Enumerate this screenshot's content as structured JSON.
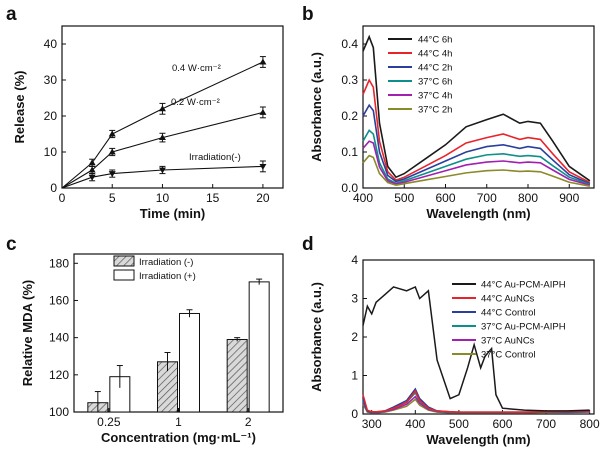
{
  "chart_data": [
    {
      "panel": "a",
      "type": "line",
      "xlabel": "Time (min)",
      "ylabel": "Release (%)",
      "xlim": [
        0,
        22
      ],
      "ylim": [
        0,
        45
      ],
      "xticks": [
        0,
        5,
        10,
        15,
        20
      ],
      "yticks": [
        0,
        10,
        20,
        30,
        40
      ],
      "x": [
        0,
        3,
        5,
        10,
        20
      ],
      "series": [
        {
          "name": "0.4 W·cm⁻²",
          "values": [
            0,
            7,
            15,
            22,
            35
          ],
          "errors": [
            0,
            1,
            1,
            1.5,
            1.5
          ],
          "marker": "triangle-up"
        },
        {
          "name": "0.2 W·cm⁻²",
          "values": [
            0,
            5,
            10,
            14,
            21
          ],
          "errors": [
            0,
            1,
            1,
            1.2,
            1.5
          ],
          "marker": "triangle-up"
        },
        {
          "name": "Irradiation(-)",
          "values": [
            0,
            3,
            4,
            5,
            6
          ],
          "errors": [
            0,
            1,
            1,
            1,
            1.5
          ],
          "marker": "triangle-down"
        }
      ]
    },
    {
      "panel": "b",
      "type": "line",
      "xlabel": "Wavelength (nm)",
      "ylabel": "Absorbance (a.u.)",
      "xlim": [
        400,
        960
      ],
      "ylim": [
        0,
        0.45
      ],
      "xticks": [
        400,
        500,
        600,
        700,
        800,
        900
      ],
      "yticks": [
        0.0,
        0.1,
        0.2,
        0.3,
        0.4
      ],
      "legend_position": "top-right",
      "x": [
        400,
        415,
        425,
        440,
        460,
        480,
        500,
        550,
        600,
        650,
        700,
        740,
        780,
        800,
        830,
        860,
        900,
        950
      ],
      "series": [
        {
          "name": "44°C 6h",
          "color": "#1a1a1a",
          "values": [
            0.38,
            0.42,
            0.39,
            0.18,
            0.06,
            0.03,
            0.04,
            0.08,
            0.12,
            0.17,
            0.19,
            0.205,
            0.18,
            0.185,
            0.18,
            0.13,
            0.06,
            0.02
          ]
        },
        {
          "name": "44°C 4h",
          "color": "#e8242b",
          "values": [
            0.26,
            0.3,
            0.28,
            0.13,
            0.045,
            0.022,
            0.03,
            0.06,
            0.09,
            0.125,
            0.14,
            0.15,
            0.135,
            0.14,
            0.135,
            0.095,
            0.045,
            0.015
          ]
        },
        {
          "name": "44°C 2h",
          "color": "#2a3f9d",
          "values": [
            0.2,
            0.23,
            0.215,
            0.1,
            0.035,
            0.018,
            0.025,
            0.05,
            0.075,
            0.1,
            0.115,
            0.12,
            0.11,
            0.115,
            0.11,
            0.078,
            0.037,
            0.012
          ]
        },
        {
          "name": "37°C 6h",
          "color": "#0f8f8a",
          "values": [
            0.13,
            0.16,
            0.15,
            0.07,
            0.025,
            0.013,
            0.02,
            0.04,
            0.06,
            0.08,
            0.092,
            0.095,
            0.088,
            0.09,
            0.087,
            0.062,
            0.03,
            0.01
          ]
        },
        {
          "name": "37°C 4h",
          "color": "#a020b0",
          "values": [
            0.11,
            0.13,
            0.125,
            0.058,
            0.02,
            0.011,
            0.016,
            0.032,
            0.048,
            0.064,
            0.072,
            0.075,
            0.07,
            0.072,
            0.07,
            0.05,
            0.024,
            0.008
          ]
        },
        {
          "name": "37°C 2h",
          "color": "#8a8a2a",
          "values": [
            0.07,
            0.09,
            0.085,
            0.04,
            0.015,
            0.008,
            0.012,
            0.022,
            0.032,
            0.042,
            0.048,
            0.05,
            0.046,
            0.047,
            0.045,
            0.033,
            0.016,
            0.005
          ]
        }
      ]
    },
    {
      "panel": "c",
      "type": "bar",
      "xlabel": "Concentration (mg·mL⁻¹)",
      "ylabel": "Relative MDA (%)",
      "ylim": [
        100,
        185
      ],
      "yticks": [
        100,
        120,
        140,
        160,
        180
      ],
      "categories": [
        "0.25",
        "1",
        "2"
      ],
      "legend_position": "top-left",
      "series": [
        {
          "name": "Irradiation (-)",
          "values": [
            105,
            127,
            139
          ],
          "errors": [
            6,
            5,
            1
          ],
          "pattern": "hatched"
        },
        {
          "name": "Irradiation (+)",
          "values": [
            119,
            153,
            170
          ],
          "errors": [
            6,
            2,
            1.5
          ],
          "pattern": "open"
        }
      ]
    },
    {
      "panel": "d",
      "type": "line",
      "xlabel": "Wavelength (nm)",
      "ylabel": "Absorbance (a.u.)",
      "xlim": [
        280,
        810
      ],
      "ylim": [
        0,
        4
      ],
      "xticks": [
        300,
        400,
        500,
        600,
        700,
        800
      ],
      "yticks": [
        0,
        1,
        2,
        3,
        4
      ],
      "legend_position": "top-right",
      "x": [
        280,
        290,
        300,
        310,
        330,
        350,
        380,
        400,
        410,
        430,
        450,
        480,
        500,
        520,
        535,
        550,
        560,
        575,
        585,
        600,
        650,
        700,
        750,
        800
      ],
      "series": [
        {
          "name": "44°C Au-PCM-AIPH",
          "color": "#1a1a1a",
          "values": [
            2.3,
            2.8,
            2.6,
            2.9,
            3.1,
            3.3,
            3.2,
            3.3,
            3.0,
            3.2,
            1.4,
            0.4,
            0.5,
            1.2,
            1.8,
            1.2,
            1.5,
            1.7,
            0.5,
            0.15,
            0.1,
            0.08,
            0.08,
            0.1
          ]
        },
        {
          "name": "44°C AuNCs",
          "color": "#e8242b",
          "values": [
            0.5,
            0.1,
            0.06,
            0.06,
            0.08,
            0.15,
            0.3,
            0.6,
            0.35,
            0.15,
            0.08,
            0.06,
            0.05,
            0.05,
            0.05,
            0.05,
            0.05,
            0.05,
            0.05,
            0.05,
            0.05,
            0.06,
            0.07,
            0.08
          ]
        },
        {
          "name": "44°C Control",
          "color": "#2a3f9d",
          "values": [
            0.4,
            0.08,
            0.05,
            0.05,
            0.08,
            0.18,
            0.35,
            0.65,
            0.4,
            0.18,
            0.08,
            0.06,
            0.05,
            0.05,
            0.05,
            0.05,
            0.05,
            0.05,
            0.05,
            0.05,
            0.05,
            0.06,
            0.06,
            0.07
          ]
        },
        {
          "name": "37°C Au-PCM-AIPH",
          "color": "#0f8f8a",
          "values": [
            0.35,
            0.07,
            0.05,
            0.05,
            0.07,
            0.15,
            0.3,
            0.55,
            0.33,
            0.14,
            0.07,
            0.05,
            0.04,
            0.04,
            0.04,
            0.04,
            0.04,
            0.04,
            0.04,
            0.04,
            0.05,
            0.05,
            0.06,
            0.07
          ]
        },
        {
          "name": "37°C AuNCs",
          "color": "#a020b0",
          "values": [
            0.3,
            0.06,
            0.04,
            0.04,
            0.06,
            0.12,
            0.25,
            0.45,
            0.28,
            0.12,
            0.06,
            0.04,
            0.04,
            0.04,
            0.04,
            0.04,
            0.04,
            0.04,
            0.04,
            0.04,
            0.04,
            0.05,
            0.05,
            0.06
          ]
        },
        {
          "name": "37°C Control",
          "color": "#8a8a2a",
          "values": [
            0.25,
            0.05,
            0.03,
            0.03,
            0.05,
            0.1,
            0.2,
            0.38,
            0.23,
            0.1,
            0.05,
            0.03,
            0.03,
            0.03,
            0.03,
            0.03,
            0.03,
            0.03,
            0.03,
            0.03,
            0.03,
            0.04,
            0.04,
            0.05
          ]
        }
      ]
    }
  ],
  "panel_labels": [
    "a",
    "b",
    "c",
    "d"
  ]
}
